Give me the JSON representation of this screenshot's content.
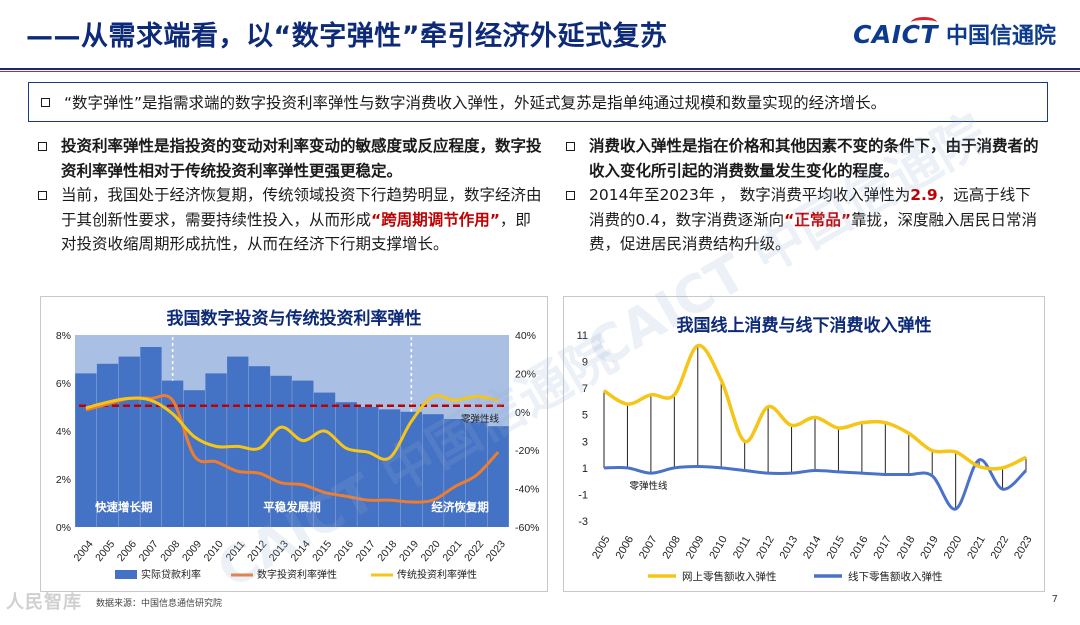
{
  "header": {
    "title": "——从需求端看，以“数字弹性”牵引经济外延式复苏",
    "logo_text": "CAICT",
    "logo_cn": "中国信通院"
  },
  "intro": {
    "text": "“数字弹性”是指需求端的数字投资利率弹性与数字消费收入弹性，外延式复苏是指单纯通过规模和数量实现的经济增长。"
  },
  "left_column": {
    "b1": "投资利率弹性是指投资的变动对利率变动的敏感度或反应程度，数字投资利率弹性相对于传统投资利率弹性更强更稳定。",
    "b2_part1": "当前，我国处于经济恢复期，传统领域投资下行趋势明显，数字经济由于其创新性要求，需要持续性投入，从而形成",
    "b2_red": "“跨周期调节作用”",
    "b2_part2": "，即对投资收缩周期形成抗性，从而在经济下行期支撑增长。"
  },
  "right_column": {
    "b1": "消费收入弹性是指在价格和其他因素不变的条件下，由于消费者的收入变化所引起的消费数量发生变化的程度。",
    "b2_part1": "2014年至2023年 ，  数字消费平均收入弹性为",
    "b2_red1": "2.9",
    "b2_part2": "，远高于线下消费的0.4，数字消费逐渐向",
    "b2_red2": "“正常品”",
    "b2_part3": "靠拢，深度融入居民日常消费，促进居民消费结构升级。"
  },
  "colors": {
    "navy": "#0d2a78",
    "bar_blue": "#4472c4",
    "orange": "#ed7d31",
    "gold": "#f5c518",
    "dashed_red": "#c00000",
    "offline_blue": "#4a72c8",
    "phase_bg": "#a9bfe3"
  },
  "chart_data": [
    {
      "type": "bar+line",
      "title": "我国数字投资与传统投资利率弹性",
      "categories": [
        "2004",
        "2005",
        "2006",
        "2007",
        "2008",
        "2009",
        "2010",
        "2011",
        "2012",
        "2013",
        "2014",
        "2015",
        "2016",
        "2017",
        "2018",
        "2019",
        "2020",
        "2021",
        "2022",
        "2023"
      ],
      "y_left": {
        "ticks": [
          "0%",
          "2%",
          "4%",
          "6%",
          "8%"
        ],
        "range": [
          0,
          8
        ]
      },
      "y_right": {
        "ticks": [
          "-60%",
          "-40%",
          "-20%",
          "0%",
          "20%",
          "40%"
        ],
        "range": [
          -60,
          40
        ]
      },
      "phases": [
        {
          "label": "快速增长期"
        },
        {
          "label": "平稳发展期"
        },
        {
          "label": "经济恢复期"
        }
      ],
      "zero_line_label": "零弹性线",
      "series": [
        {
          "name": "实际贷款利率",
          "axis": "left",
          "kind": "bar",
          "values": [
            6.4,
            6.8,
            7.1,
            7.5,
            6.1,
            5.7,
            6.4,
            7.1,
            6.7,
            6.3,
            6.1,
            5.6,
            5.2,
            5.0,
            4.9,
            4.8,
            4.7,
            4.5,
            4.4,
            4.2
          ]
        },
        {
          "name": "数字投资利率弹性",
          "axis": "right",
          "kind": "line",
          "values": [
            1,
            4,
            7,
            7,
            6,
            -23,
            -26,
            -31,
            -32,
            -37,
            -38,
            -42,
            -44,
            -46,
            -46,
            -47,
            -46,
            -39,
            -33,
            -21
          ]
        },
        {
          "name": "传统投资利率弹性",
          "axis": "right",
          "kind": "line",
          "values": [
            2,
            5,
            7,
            6,
            -1,
            -13,
            -18,
            -18,
            -19,
            -8,
            -15,
            -10,
            -19,
            -21,
            -24,
            -5,
            8,
            6,
            8,
            6
          ]
        }
      ]
    },
    {
      "type": "line",
      "title": "我国线上消费与线下消费收入弹性",
      "categories": [
        "2005",
        "2006",
        "2007",
        "2008",
        "2009",
        "2010",
        "2011",
        "2012",
        "2013",
        "2014",
        "2015",
        "2016",
        "2017",
        "2018",
        "2019",
        "2020",
        "2021",
        "2022",
        "2023"
      ],
      "y_ticks": [
        "-3",
        "-1",
        "1",
        "3",
        "5",
        "7",
        "9",
        "11"
      ],
      "range": [
        -3,
        11
      ],
      "zero_line_label": "零弹性线",
      "series": [
        {
          "name": "网上零售额收入弹性",
          "values": [
            6.8,
            5.8,
            6.5,
            6.5,
            10.2,
            7.6,
            3.0,
            5.6,
            4.2,
            4.8,
            4.0,
            4.4,
            4.4,
            3.6,
            2.3,
            2.2,
            1.1,
            1.0,
            1.8
          ]
        },
        {
          "name": "线下零售额收入弹性",
          "values": [
            1.0,
            1.0,
            0.6,
            1.0,
            1.1,
            1.0,
            0.8,
            0.6,
            0.6,
            0.8,
            0.7,
            0.6,
            0.5,
            0.5,
            0.4,
            -2.1,
            1.6,
            -0.6,
            0.8
          ]
        }
      ]
    }
  ],
  "footer": {
    "source": "数据来源：中国信息通信研究院",
    "page_number": "7",
    "watermark_corner": "人民智库"
  }
}
